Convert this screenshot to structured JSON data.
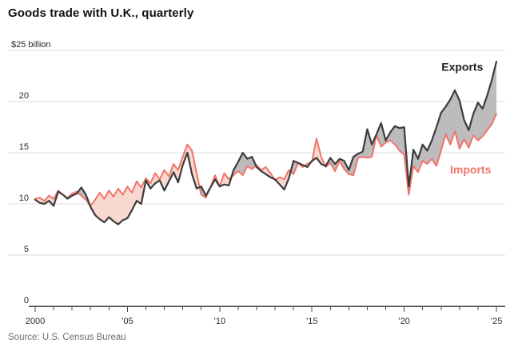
{
  "chart_data": {
    "type": "line",
    "title": "Goods trade with U.K., quarterly",
    "source": "Source: U.S. Census Bureau",
    "frequency": "quarterly",
    "x_start_year": 2000,
    "x_end": "2025 Q1",
    "ylim": [
      0,
      25
    ],
    "xlim": [
      2000,
      2025.25
    ],
    "grid": "horizontal",
    "legend": "direct-labeled-lines",
    "y_ticks": [
      0,
      5,
      10,
      15,
      20,
      25
    ],
    "y_top_label": "$25 billion",
    "x_ticks": [
      {
        "year": 2000,
        "label": "2000"
      },
      {
        "year": 2005,
        "label": "’05"
      },
      {
        "year": 2010,
        "label": "’10"
      },
      {
        "year": 2015,
        "label": "’15"
      },
      {
        "year": 2020,
        "label": "’20"
      },
      {
        "year": 2025,
        "label": "’25"
      }
    ],
    "series": [
      {
        "name": "Exports",
        "line_color": "#3c3c3c",
        "label_color": "#1c1c1c",
        "area_color_when_above": "#bcbcbc",
        "values": [
          10.4,
          10.1,
          10.0,
          10.3,
          9.8,
          11.2,
          10.9,
          10.5,
          10.8,
          11.0,
          11.6,
          10.9,
          9.7,
          8.9,
          8.5,
          8.2,
          8.7,
          8.3,
          8.0,
          8.4,
          8.6,
          9.4,
          10.3,
          10.0,
          12.3,
          11.5,
          12.0,
          12.3,
          11.3,
          12.2,
          13.1,
          12.1,
          13.8,
          15.0,
          12.9,
          11.5,
          11.7,
          10.8,
          11.6,
          12.4,
          11.7,
          11.9,
          11.8,
          13.3,
          14.1,
          15.0,
          14.4,
          14.6,
          13.6,
          13.2,
          12.9,
          12.6,
          12.4,
          11.9,
          11.4,
          12.5,
          14.2,
          14.0,
          13.8,
          13.6,
          14.2,
          14.5,
          13.9,
          13.7,
          14.5,
          13.9,
          14.4,
          14.2,
          13.3,
          14.6,
          14.9,
          15.1,
          17.3,
          15.8,
          16.8,
          17.9,
          16.2,
          17.0,
          17.6,
          17.4,
          17.5,
          11.7,
          15.3,
          14.4,
          15.8,
          15.2,
          16.2,
          17.5,
          18.9,
          19.5,
          20.2,
          21.1,
          20.1,
          18.2,
          17.2,
          18.8,
          19.9,
          19.3,
          20.6,
          22.1,
          23.9
        ]
      },
      {
        "name": "Imports",
        "line_color": "#f1746a",
        "label_color": "#f1746a",
        "area_color_when_above": "#f9d8d0",
        "values": [
          10.5,
          10.6,
          10.3,
          10.8,
          10.5,
          11.3,
          10.9,
          10.6,
          11.0,
          11.2,
          10.8,
          10.4,
          9.8,
          10.4,
          11.1,
          10.5,
          11.3,
          10.7,
          11.5,
          10.9,
          11.7,
          11.1,
          12.2,
          11.6,
          12.5,
          12.0,
          13.0,
          12.4,
          13.3,
          12.7,
          13.9,
          13.3,
          14.6,
          15.8,
          15.2,
          13.0,
          10.9,
          10.6,
          11.6,
          12.8,
          11.7,
          13.0,
          12.4,
          12.8,
          13.2,
          12.8,
          13.7,
          13.4,
          13.8,
          13.3,
          13.6,
          13.0,
          12.3,
          12.6,
          12.4,
          13.3,
          12.9,
          14.0,
          13.6,
          13.9,
          14.1,
          16.4,
          14.6,
          13.6,
          14.0,
          13.2,
          14.2,
          13.4,
          12.9,
          12.8,
          14.5,
          14.6,
          14.5,
          14.6,
          16.7,
          15.6,
          16.0,
          16.2,
          15.8,
          15.2,
          14.8,
          10.9,
          13.7,
          13.1,
          14.2,
          13.9,
          14.4,
          13.7,
          15.2,
          16.8,
          15.8,
          17.1,
          15.4,
          16.3,
          15.5,
          16.7,
          16.2,
          16.6,
          17.2,
          17.8,
          18.8
        ]
      }
    ],
    "series_labels": [
      {
        "text": "Exports",
        "x_year": 2023.15,
        "y_value": 23.4
      },
      {
        "text": "Imports",
        "x_year": 2023.6,
        "y_value": 13.35
      }
    ],
    "axis_colors": {
      "gridline": "#dedede",
      "axis_line": "#4a4a4a",
      "tick_text": "#2b2b2b"
    }
  }
}
